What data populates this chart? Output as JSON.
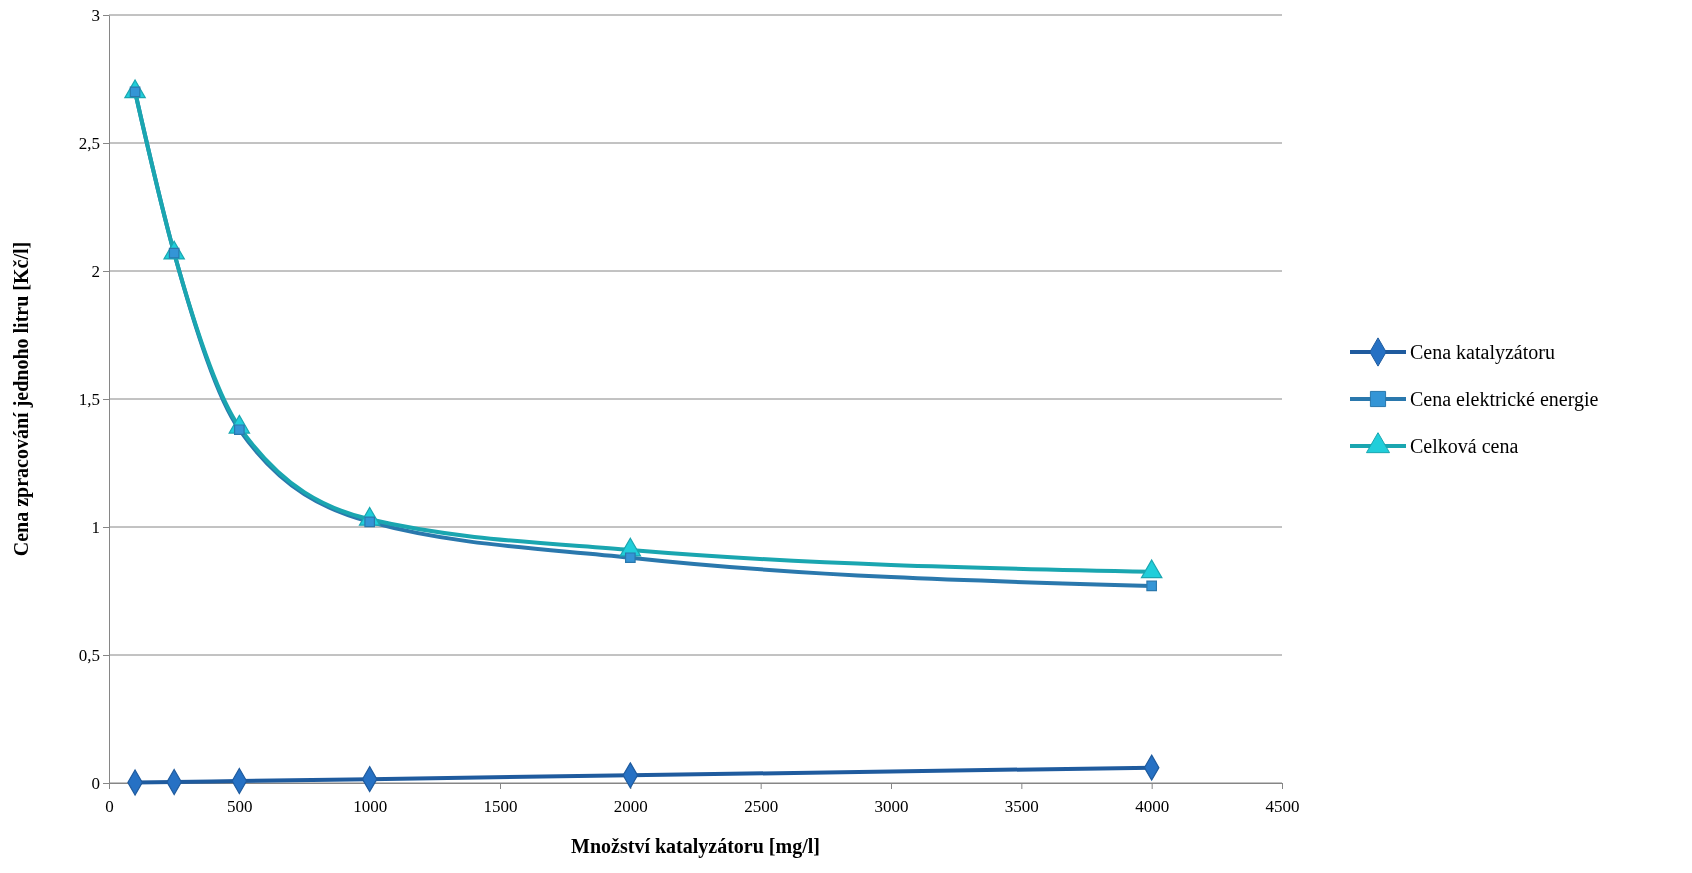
{
  "chart_data": {
    "type": "line",
    "xlabel": "Množství katalyzátoru [mg/l]",
    "ylabel": "Cena zpracování jednoho litru [Kč/l]",
    "x": [
      100,
      250,
      500,
      1000,
      2000,
      4000
    ],
    "series": [
      {
        "name": "Cena katalyzátoru",
        "color": "#1f5b9e",
        "marker": "diamond",
        "values": [
          0.002,
          0.004,
          0.008,
          0.015,
          0.03,
          0.06
        ]
      },
      {
        "name": "Cena elektrické energie",
        "color": "#2a78ad",
        "marker": "square",
        "values": [
          2.7,
          2.07,
          1.38,
          1.02,
          0.88,
          0.77
        ]
      },
      {
        "name": "Celková cena",
        "color": "#1aa6b0",
        "marker": "triangle",
        "values": [
          2.7,
          2.07,
          1.39,
          1.03,
          0.91,
          0.825
        ]
      }
    ],
    "xlim": [
      0,
      4500
    ],
    "xticks": [
      0,
      500,
      1000,
      1500,
      2000,
      2500,
      3000,
      3500,
      4000,
      4500
    ],
    "ylim": [
      0,
      3
    ],
    "yticks": [
      0,
      {
        "value": 0.5,
        "label": "0,5"
      },
      1,
      {
        "value": 1.5,
        "label": "1,5"
      },
      2,
      {
        "value": 2.5,
        "label": "2,5"
      },
      3
    ],
    "grid": "y",
    "legend": "right",
    "line_style": "solid"
  }
}
